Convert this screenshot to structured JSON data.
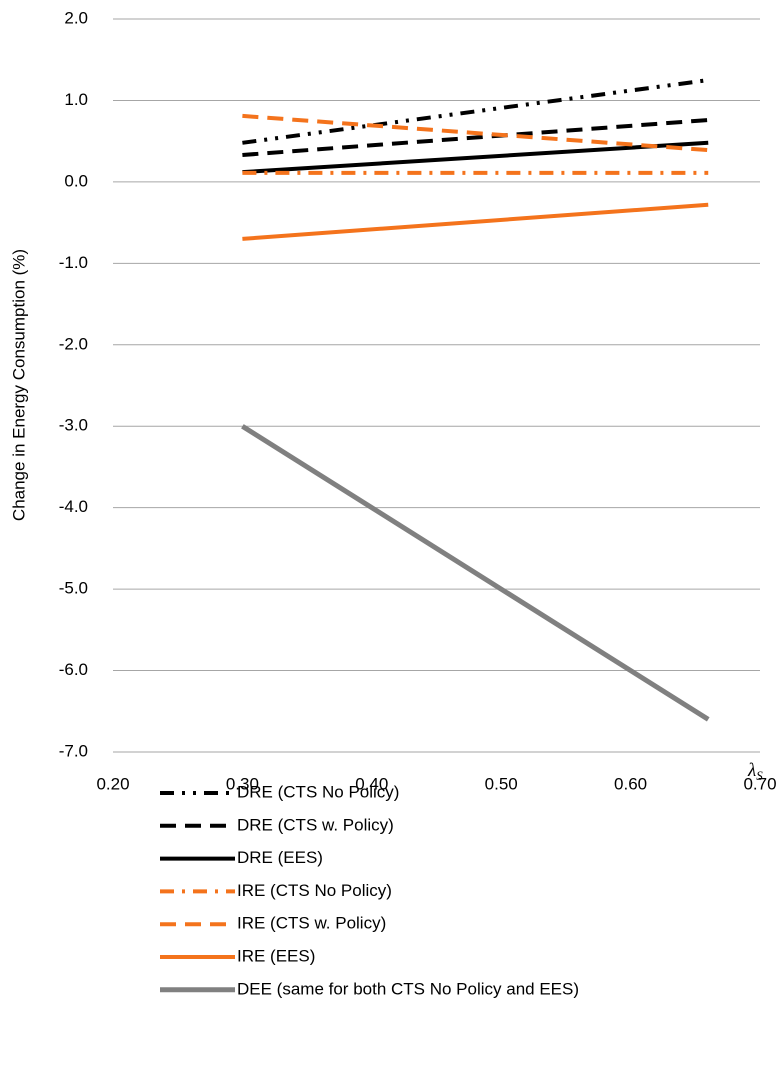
{
  "chart_data": {
    "type": "line",
    "y_label": "Change in Energy Consumption (%)",
    "x_label": {
      "symbol": "λ",
      "subscript": "S"
    },
    "x": [
      0.3,
      0.66
    ],
    "xlim": [
      0.2,
      0.7
    ],
    "xticks": [
      {
        "value": 0.2,
        "label": "0.20"
      },
      {
        "value": 0.3,
        "label": "0.30"
      },
      {
        "value": 0.4,
        "label": "0.40"
      },
      {
        "value": 0.5,
        "label": "0.50"
      },
      {
        "value": 0.6,
        "label": "0.60"
      },
      {
        "value": 0.7,
        "label": "0.70"
      }
    ],
    "ylim": [
      -7,
      2
    ],
    "yticks": [
      {
        "value": 2,
        "label": "2.0"
      },
      {
        "value": 1,
        "label": "1.0"
      },
      {
        "value": 0,
        "label": "0.0"
      },
      {
        "value": -1,
        "label": "-1.0"
      },
      {
        "value": -2,
        "label": "-2.0"
      },
      {
        "value": -3,
        "label": "-3.0"
      },
      {
        "value": -4,
        "label": "-4.0"
      },
      {
        "value": -5,
        "label": "-5.0"
      },
      {
        "value": -6,
        "label": "-6.0"
      },
      {
        "value": -7,
        "label": "-7.0"
      }
    ],
    "grid": true,
    "legend": "bottom",
    "series": [
      {
        "name": "DRE (CTS No Policy)",
        "color": "#000000",
        "dash": "dash-dot-dot",
        "values": [
          0.48,
          1.25
        ]
      },
      {
        "name": "DRE (CTS w. Policy)",
        "color": "#000000",
        "dash": "dash",
        "values": [
          0.33,
          0.76
        ]
      },
      {
        "name": "DRE (EES)",
        "color": "#000000",
        "dash": "solid",
        "values": [
          0.12,
          0.48
        ]
      },
      {
        "name": "IRE (CTS No Policy)",
        "color": "#f4731c",
        "dash": "dash-dot",
        "values": [
          0.11,
          0.11
        ]
      },
      {
        "name": "IRE (CTS w. Policy)",
        "color": "#f4731c",
        "dash": "dash",
        "values": [
          0.81,
          0.39
        ]
      },
      {
        "name": "IRE (EES)",
        "color": "#f4731c",
        "dash": "solid",
        "values": [
          -0.7,
          -0.28
        ]
      },
      {
        "name": "DEE (same for both CTS No Policy and EES)",
        "color": "#808080",
        "dash": "solid",
        "values": [
          -3.0,
          -6.6
        ]
      }
    ]
  }
}
